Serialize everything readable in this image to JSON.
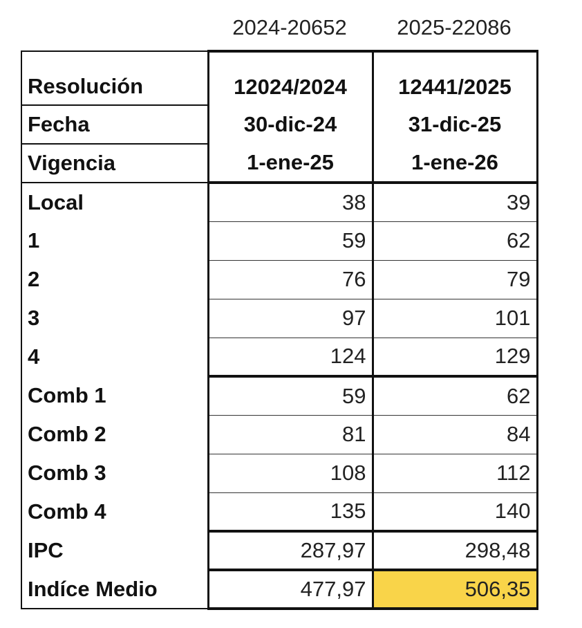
{
  "column_codes": [
    "2024-20652",
    "2025-22086"
  ],
  "header_rows": [
    {
      "label": "Resolución",
      "values": [
        "12024/2024",
        "12441/2025"
      ]
    },
    {
      "label": "Fecha",
      "values": [
        "30-dic-24",
        "31-dic-25"
      ]
    },
    {
      "label": "Vigencia",
      "values": [
        "1-ene-25",
        "1-ene-26"
      ]
    }
  ],
  "rows": [
    {
      "label": "Local",
      "values": [
        "38",
        "39"
      ]
    },
    {
      "label": "1",
      "values": [
        "59",
        "62"
      ]
    },
    {
      "label": "2",
      "values": [
        "76",
        "79"
      ]
    },
    {
      "label": "3",
      "values": [
        "97",
        "101"
      ]
    },
    {
      "label": "4",
      "values": [
        "124",
        "129"
      ]
    },
    {
      "label": "Comb 1",
      "values": [
        "59",
        "62"
      ]
    },
    {
      "label": "Comb 2",
      "values": [
        "81",
        "84"
      ]
    },
    {
      "label": "Comb 3",
      "values": [
        "108",
        "112"
      ]
    },
    {
      "label": "Comb 4",
      "values": [
        "135",
        "140"
      ]
    },
    {
      "label": "IPC",
      "values": [
        "287,97",
        "298,48"
      ]
    },
    {
      "label": "Indíce Medio",
      "values": [
        "477,97",
        "506,35"
      ]
    }
  ],
  "highlight_color": "#f9d449"
}
